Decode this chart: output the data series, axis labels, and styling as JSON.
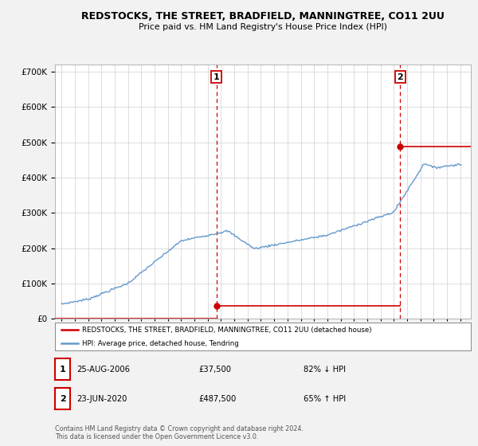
{
  "title": "REDSTOCKS, THE STREET, BRADFIELD, MANNINGTREE, CO11 2UU",
  "subtitle": "Price paid vs. HM Land Registry's House Price Index (HPI)",
  "sale1_date": "25-AUG-2006",
  "sale1_price": 37500,
  "sale2_date": "23-JUN-2020",
  "sale2_price": 487500,
  "legend1": "REDSTOCKS, THE STREET, BRADFIELD, MANNINGTREE, CO11 2UU (detached house)",
  "legend2": "HPI: Average price, detached house, Tendring",
  "footnote": "Contains HM Land Registry data © Crown copyright and database right 2024.\nThis data is licensed under the Open Government Licence v3.0.",
  "table_row1": [
    "1",
    "25-AUG-2006",
    "£37,500",
    "82% ↓ HPI"
  ],
  "table_row2": [
    "2",
    "23-JUN-2020",
    "£487,500",
    "65% ↑ HPI"
  ],
  "hpi_color": "#6699cc",
  "price_color": "#cc0000",
  "background_color": "#f2f2f2",
  "plot_bg_color": "#ffffff",
  "sale1_x": 2006.65,
  "sale2_x": 2020.48,
  "ylim_max": 720000,
  "xmin": 1994.5,
  "xmax": 2025.8
}
